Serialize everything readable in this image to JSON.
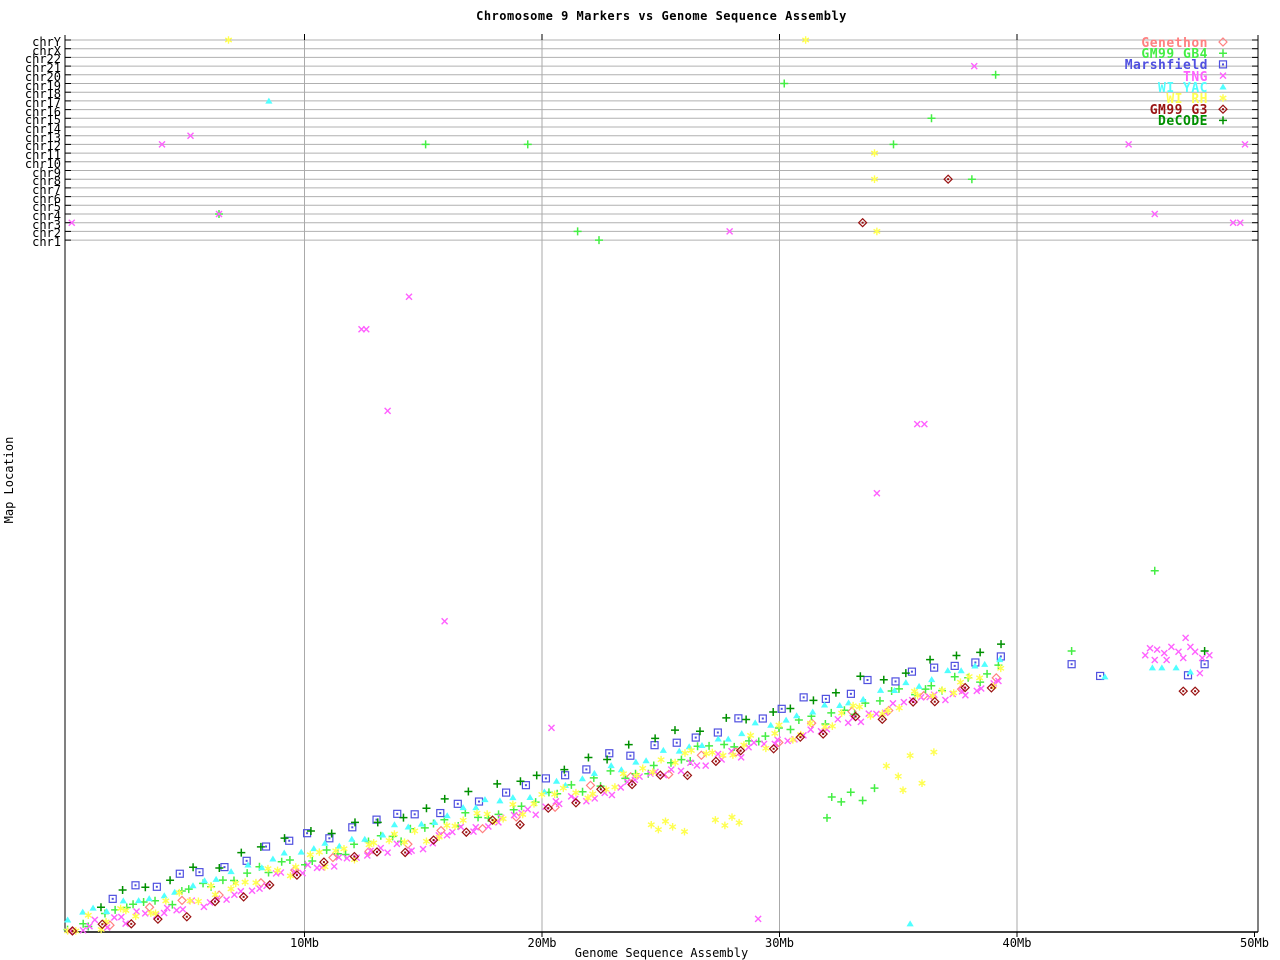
{
  "title": "Chromosome 9 Markers vs Genome Sequence Assembly",
  "x_axis": {
    "label": "Genome Sequence Assembly",
    "ticks": [
      "10Mb",
      "20Mb",
      "30Mb",
      "40Mb",
      "50Mb"
    ],
    "tick_values_mb": [
      10,
      20,
      30,
      40,
      50
    ],
    "gridline_values_mb": [
      10,
      20,
      30,
      40
    ]
  },
  "y_axis": {
    "label": "Map Location"
  },
  "chromosome_lanes": [
    "chrY",
    "chrX",
    "chr22",
    "chr21",
    "chr20",
    "chr19",
    "chr18",
    "chr17",
    "chr16",
    "chr15",
    "chr14",
    "chr13",
    "chr12",
    "chr11",
    "chr10",
    "chr9",
    "chr8",
    "chr7",
    "chr6",
    "chr5",
    "chr4",
    "chr3",
    "chr2",
    "chr1"
  ],
  "colors": {
    "axis": "#000000",
    "gridline": "#aaaaaa",
    "lane_line": "#b0b0b0",
    "genethon": "#ff8080",
    "gm99_gb4": "#44ee44",
    "marshfield": "#5050e0",
    "tng": "#ff60ff",
    "wi_yac": "#50ffff",
    "wi_rh": "#ffff50",
    "gm99_g3": "#991111",
    "decode": "#009000"
  },
  "legend": [
    {
      "label": "Genethon",
      "marker": "diamond-open",
      "color": "#ff8080"
    },
    {
      "label": "GM99 GB4",
      "marker": "plus",
      "color": "#44ee44"
    },
    {
      "label": "Marshfield",
      "marker": "square-dot",
      "color": "#5050e0"
    },
    {
      "label": "TNG",
      "marker": "x",
      "color": "#ff60ff"
    },
    {
      "label": "WI YAC",
      "marker": "triangle",
      "color": "#50ffff"
    },
    {
      "label": "WI RH",
      "marker": "asterisk",
      "color": "#ffff50"
    },
    {
      "label": "GM99 G3",
      "marker": "diamond-dot",
      "color": "#991111"
    },
    {
      "label": "DeCODE",
      "marker": "plus",
      "color": "#009000"
    }
  ],
  "chart_data": {
    "type": "scatter",
    "title": "Chromosome 9 Markers vs Genome Sequence Assembly",
    "xlabel": "Genome Sequence Assembly",
    "ylabel": "Map Location",
    "x_unit": "Mb",
    "x_range_mb": [
      0,
      50.2
    ],
    "y_map_units": "relative chr9 map location 0-100 (0 = bottom axis)",
    "description": "Each series is a marker map plotted against assembly position; the main band rises diagonally from (0Mb, bottom) to about (39Mb, map 38), with an extra cluster at 42-48Mb. Trend = band path read from the plot; outliers and other_chromosome_hits are individually visible points.",
    "series": [
      {
        "name": "Genethon",
        "color": "#ff8080",
        "marker": "diamond-open",
        "seed": 11,
        "n_points": 26,
        "x_range": [
          0.3,
          39.2
        ],
        "scatter": 0.9,
        "trend": [
          [
            0,
            0.3
          ],
          [
            5,
            4.2
          ],
          [
            10,
            9.6
          ],
          [
            15,
            13.4
          ],
          [
            20,
            18.3
          ],
          [
            25,
            23.4
          ],
          [
            30,
            28.1
          ],
          [
            35,
            33.1
          ],
          [
            39.3,
            36.6
          ]
        ],
        "outliers": [],
        "other_chromosome_hits": []
      },
      {
        "name": "GM99 GB4",
        "color": "#44ee44",
        "marker": "plus",
        "seed": 22,
        "n_points": 85,
        "x_range": [
          0.1,
          39.3
        ],
        "scatter": 1.0,
        "trend": [
          [
            0,
            0.7
          ],
          [
            5,
            5.3
          ],
          [
            10,
            10.7
          ],
          [
            15,
            14.5
          ],
          [
            20,
            19.4
          ],
          [
            25,
            24.5
          ],
          [
            30,
            29.2
          ],
          [
            35,
            34.2
          ],
          [
            39.3,
            37.7
          ]
        ],
        "outliers": [
          [
            42.3,
            40.6
          ],
          [
            45.8,
            52.2
          ],
          [
            32.2,
            19.5
          ],
          [
            32.6,
            18.8
          ],
          [
            33.0,
            20.2
          ],
          [
            33.5,
            19.0
          ],
          [
            32.0,
            16.5
          ],
          [
            34.0,
            20.8
          ]
        ],
        "other_chromosome_hits": [
          [
            "chr20",
            39.1
          ],
          [
            "chr19",
            30.2
          ],
          [
            "chr15",
            36.4
          ],
          [
            "chr12",
            15.1
          ],
          [
            "chr12",
            19.4
          ],
          [
            "chr12",
            34.8
          ],
          [
            "chr8",
            38.1
          ],
          [
            "chr4",
            6.4
          ],
          [
            "chr2",
            21.5
          ],
          [
            "chr1",
            22.4
          ]
        ]
      },
      {
        "name": "Marshfield",
        "color": "#5050e0",
        "marker": "square-dot",
        "seed": 33,
        "n_points": 42,
        "x_range": [
          2.0,
          39.3
        ],
        "scatter": 0.9,
        "trend": [
          [
            2,
            5.2
          ],
          [
            5,
            8.0
          ],
          [
            10,
            13.4
          ],
          [
            15,
            17.2
          ],
          [
            20,
            22.1
          ],
          [
            25,
            27.2
          ],
          [
            30,
            31.9
          ],
          [
            35,
            36.9
          ],
          [
            39.3,
            40.4
          ]
        ],
        "outliers": [
          [
            42.3,
            38.7
          ],
          [
            43.5,
            37.0
          ],
          [
            47.9,
            38.7
          ],
          [
            47.2,
            37.1
          ]
        ],
        "other_chromosome_hits": []
      },
      {
        "name": "TNG",
        "color": "#ff60ff",
        "marker": "x",
        "seed": 44,
        "n_points": 115,
        "x_range": [
          0.2,
          39.3
        ],
        "scatter": 0.8,
        "trend": [
          [
            0,
            0.2
          ],
          [
            5,
            3.6
          ],
          [
            10,
            9.0
          ],
          [
            15,
            12.8
          ],
          [
            20,
            17.7
          ],
          [
            25,
            22.8
          ],
          [
            30,
            27.5
          ],
          [
            35,
            32.5
          ],
          [
            39.3,
            36.0
          ]
        ],
        "outliers": [
          [
            14.4,
            91.8
          ],
          [
            12.4,
            87.1
          ],
          [
            12.6,
            87.1
          ],
          [
            13.5,
            75.3
          ],
          [
            35.8,
            73.4
          ],
          [
            36.1,
            73.4
          ],
          [
            34.1,
            63.4
          ],
          [
            15.9,
            44.9
          ],
          [
            20.4,
            29.5
          ],
          [
            29.1,
            1.9
          ],
          [
            45.6,
            41.0
          ],
          [
            45.9,
            40.8
          ],
          [
            46.2,
            40.3
          ],
          [
            46.5,
            41.2
          ],
          [
            46.8,
            40.5
          ],
          [
            47.1,
            42.5
          ],
          [
            47.3,
            41.2
          ],
          [
            47.5,
            40.5
          ],
          [
            47.8,
            39.6
          ],
          [
            45.8,
            39.3
          ],
          [
            46.3,
            39.3
          ],
          [
            47.0,
            39.6
          ],
          [
            47.7,
            37.4
          ],
          [
            48.1,
            40.0
          ],
          [
            45.4,
            40.0
          ]
        ],
        "other_chromosome_hits": [
          [
            "chr21",
            38.2
          ],
          [
            "chr13",
            5.2
          ],
          [
            "chr12",
            4.0
          ],
          [
            "chr12",
            44.7
          ],
          [
            "chr12",
            49.6
          ],
          [
            "chr4",
            6.4
          ],
          [
            "chr4",
            45.8
          ],
          [
            "chr3",
            0.2
          ],
          [
            "chr3",
            49.1
          ],
          [
            "chr3",
            49.4
          ],
          [
            "chr2",
            27.9
          ]
        ]
      },
      {
        "name": "WI YAC",
        "color": "#50ffff",
        "marker": "triangle",
        "seed": 55,
        "n_points": 70,
        "x_range": [
          0.1,
          39.3
        ],
        "scatter": 0.7,
        "trend": [
          [
            0,
            2.0
          ],
          [
            5,
            6.6
          ],
          [
            10,
            12.0
          ],
          [
            15,
            15.8
          ],
          [
            20,
            20.7
          ],
          [
            25,
            25.8
          ],
          [
            30,
            30.5
          ],
          [
            35,
            35.5
          ],
          [
            39.3,
            39.0
          ]
        ],
        "outliers": [
          [
            45.7,
            38.2
          ],
          [
            46.1,
            38.2
          ],
          [
            46.7,
            38.2
          ],
          [
            47.3,
            37.6
          ],
          [
            43.7,
            36.9
          ],
          [
            35.5,
            1.2
          ]
        ],
        "other_chromosome_hits": [
          [
            "chr17",
            8.5
          ]
        ]
      },
      {
        "name": "WI RH",
        "color": "#ffff50",
        "marker": "asterisk",
        "seed": 66,
        "n_points": 95,
        "x_range": [
          0.1,
          39.3
        ],
        "scatter": 1.4,
        "trend": [
          [
            0,
            0.3
          ],
          [
            5,
            4.6
          ],
          [
            10,
            10.0
          ],
          [
            15,
            13.8
          ],
          [
            20,
            18.7
          ],
          [
            25,
            23.8
          ],
          [
            30,
            28.5
          ],
          [
            35,
            33.5
          ],
          [
            39.3,
            37.0
          ]
        ],
        "outliers": [
          [
            24.6,
            15.5
          ],
          [
            24.9,
            14.8
          ],
          [
            25.2,
            16.0
          ],
          [
            25.5,
            15.2
          ],
          [
            26.0,
            14.5
          ],
          [
            27.3,
            16.2
          ],
          [
            27.7,
            15.4
          ],
          [
            28.0,
            16.6
          ],
          [
            28.3,
            15.8
          ],
          [
            34.5,
            24.0
          ],
          [
            35.0,
            22.5
          ],
          [
            35.5,
            25.5
          ],
          [
            36.0,
            21.5
          ],
          [
            36.5,
            26.0
          ],
          [
            35.2,
            20.5
          ]
        ],
        "other_chromosome_hits": [
          [
            "chrY",
            6.8
          ],
          [
            "chrY",
            31.1
          ],
          [
            "chr11",
            34.0
          ],
          [
            "chr8",
            34.0
          ],
          [
            "chr2",
            34.1
          ]
        ]
      },
      {
        "name": "GM99 G3",
        "color": "#991111",
        "marker": "diamond-dot",
        "seed": 77,
        "n_points": 34,
        "x_range": [
          0.3,
          39.0
        ],
        "scatter": 1.0,
        "trend": [
          [
            0,
            0.2
          ],
          [
            5,
            3.2
          ],
          [
            10,
            8.6
          ],
          [
            15,
            12.4
          ],
          [
            20,
            17.3
          ],
          [
            25,
            22.4
          ],
          [
            30,
            27.1
          ],
          [
            35,
            32.1
          ],
          [
            39.3,
            35.6
          ]
        ],
        "outliers": [
          [
            47.0,
            34.8
          ],
          [
            47.5,
            34.8
          ]
        ],
        "other_chromosome_hits": [
          [
            "chr8",
            37.1
          ],
          [
            "chr3",
            33.5
          ]
        ]
      },
      {
        "name": "DeCODE",
        "color": "#009000",
        "marker": "plus",
        "seed": 88,
        "n_points": 40,
        "x_range": [
          1.5,
          39.3
        ],
        "scatter": 0.9,
        "trend": [
          [
            1.5,
            4.0
          ],
          [
            5,
            8.7
          ],
          [
            10,
            14.1
          ],
          [
            15,
            17.9
          ],
          [
            20,
            22.8
          ],
          [
            25,
            27.9
          ],
          [
            30,
            32.6
          ],
          [
            35,
            37.6
          ],
          [
            39.3,
            41.1
          ]
        ],
        "outliers": [
          [
            47.9,
            40.6
          ]
        ],
        "other_chromosome_hits": []
      }
    ]
  }
}
